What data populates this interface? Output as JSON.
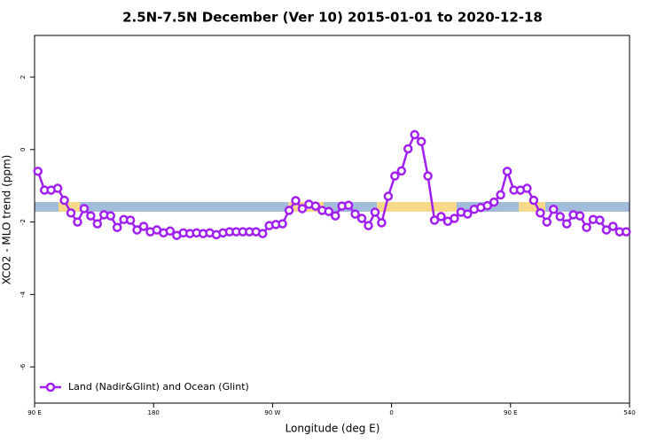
{
  "chart_data": {
    "type": "line",
    "title": "2.5N-7.5N December (Ver 10)   2015-01-01 to 2020-12-18",
    "x_label": "Longitude (deg E)",
    "y_label": "XCO2 - MLO trend (ppm)",
    "x": [
      92.5,
      97.5,
      102.5,
      107.5,
      112.5,
      117.5,
      122.5,
      127.5,
      132.5,
      137.5,
      142.5,
      147.5,
      152.5,
      157.5,
      162.5,
      167.5,
      172.5,
      177.5,
      182.5,
      187.5,
      192.5,
      197.5,
      202.5,
      207.5,
      212.5,
      217.5,
      222.5,
      227.5,
      232.5,
      237.5,
      242.5,
      247.5,
      252.5,
      257.5,
      262.5,
      267.5,
      272.5,
      277.5,
      282.5,
      287.5,
      292.5,
      297.5,
      302.5,
      307.5,
      312.5,
      317.5,
      322.5,
      327.5,
      332.5,
      337.5,
      342.5,
      347.5,
      352.5,
      357.5,
      362.5,
      367.5,
      372.5,
      377.5,
      382.5,
      387.5,
      392.5,
      397.5,
      402.5,
      407.5,
      412.5,
      417.5,
      422.5,
      427.5,
      432.5,
      437.5,
      442.5,
      447.5,
      452.5,
      457.5,
      462.5,
      467.5,
      472.5,
      477.5,
      482.5,
      487.5,
      492.5,
      497.5,
      502.5,
      507.5,
      512.5,
      517.5,
      522.5,
      527.5,
      532.5,
      537.5
    ],
    "series": [
      {
        "name": "Land (Nadir&Glint) and Ocean (Glint)",
        "color": "#a020f0",
        "values": [
          -0.6,
          -1.12,
          -1.12,
          -1.07,
          -1.4,
          -1.75,
          -2.0,
          -1.63,
          -1.83,
          -2.05,
          -1.8,
          -1.83,
          -2.15,
          -1.93,
          -1.95,
          -2.22,
          -2.12,
          -2.27,
          -2.22,
          -2.3,
          -2.25,
          -2.37,
          -2.3,
          -2.32,
          -2.3,
          -2.32,
          -2.3,
          -2.35,
          -2.3,
          -2.27,
          -2.27,
          -2.27,
          -2.27,
          -2.27,
          -2.32,
          -2.1,
          -2.07,
          -2.05,
          -1.68,
          -1.41,
          -1.63,
          -1.51,
          -1.56,
          -1.68,
          -1.71,
          -1.83,
          -1.56,
          -1.54,
          -1.78,
          -1.9,
          -2.1,
          -1.73,
          -2.02,
          -1.29,
          -0.73,
          -0.59,
          0.02,
          0.41,
          0.22,
          -0.73,
          -1.95,
          -1.85,
          -1.98,
          -1.9,
          -1.73,
          -1.78,
          -1.65,
          -1.6,
          -1.55,
          -1.45,
          -1.25,
          -0.6,
          -1.12,
          -1.12,
          -1.07,
          -1.4,
          -1.75,
          -2.0,
          -1.65,
          -1.85,
          -2.05,
          -1.8,
          -1.83,
          -2.15,
          -1.93,
          -1.95,
          -2.22,
          -2.12,
          -2.27,
          -2.27
        ]
      }
    ],
    "xlim": [
      90,
      540
    ],
    "xticks": [
      {
        "value": 90,
        "label": "90 E"
      },
      180,
      {
        "value": 270,
        "label": "90 W"
      },
      {
        "value": 360,
        "label": "0"
      },
      {
        "value": 450,
        "label": "90 E"
      },
      540
    ],
    "ylim": [
      -7,
      3.15
    ],
    "yticks": [
      2,
      0,
      -2,
      -4,
      -6
    ],
    "legend": "bottom-left"
  }
}
